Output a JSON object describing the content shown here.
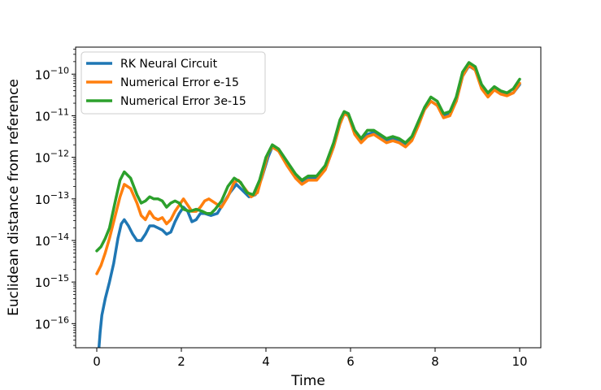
{
  "chart_data": {
    "type": "line",
    "title": "",
    "xlabel": "Time",
    "ylabel": "Euclidean distance from reference",
    "xlim": [
      -0.5,
      10.5
    ],
    "ylim_log10": [
      -16.58,
      -9.35
    ],
    "yscale": "log",
    "grid": false,
    "legend_position": "top-left",
    "x_ticks": [
      {
        "value": 0,
        "label": "0"
      },
      {
        "value": 2,
        "label": "2"
      },
      {
        "value": 4,
        "label": "4"
      },
      {
        "value": 6,
        "label": "6"
      },
      {
        "value": 8,
        "label": "8"
      },
      {
        "value": 10,
        "label": "10"
      }
    ],
    "y_ticks": [
      {
        "exp": -16,
        "base": "10",
        "sup": "−16"
      },
      {
        "exp": -15,
        "base": "10",
        "sup": "−15"
      },
      {
        "exp": -14,
        "base": "10",
        "sup": "−14"
      },
      {
        "exp": -13,
        "base": "10",
        "sup": "−13"
      },
      {
        "exp": -12,
        "base": "10",
        "sup": "−12"
      },
      {
        "exp": -11,
        "base": "10",
        "sup": "−11"
      },
      {
        "exp": -10,
        "base": "10",
        "sup": "−10"
      }
    ],
    "series": [
      {
        "name": "RK Neural Circuit",
        "color": "#1f77b4",
        "points_log10": [
          [
            0.05,
            -16.6
          ],
          [
            0.08,
            -16.2
          ],
          [
            0.12,
            -15.8
          ],
          [
            0.2,
            -15.4
          ],
          [
            0.3,
            -15.0
          ],
          [
            0.4,
            -14.55
          ],
          [
            0.5,
            -13.95
          ],
          [
            0.58,
            -13.6
          ],
          [
            0.65,
            -13.5
          ],
          [
            0.75,
            -13.65
          ],
          [
            0.85,
            -13.85
          ],
          [
            0.95,
            -14.0
          ],
          [
            1.05,
            -14.0
          ],
          [
            1.15,
            -13.85
          ],
          [
            1.25,
            -13.65
          ],
          [
            1.35,
            -13.65
          ],
          [
            1.45,
            -13.7
          ],
          [
            1.55,
            -13.75
          ],
          [
            1.65,
            -13.85
          ],
          [
            1.75,
            -13.8
          ],
          [
            1.85,
            -13.55
          ],
          [
            1.95,
            -13.35
          ],
          [
            2.05,
            -13.2
          ],
          [
            2.15,
            -13.3
          ],
          [
            2.25,
            -13.55
          ],
          [
            2.35,
            -13.5
          ],
          [
            2.45,
            -13.35
          ],
          [
            2.55,
            -13.35
          ],
          [
            2.7,
            -13.4
          ],
          [
            2.85,
            -13.35
          ],
          [
            3.0,
            -13.1
          ],
          [
            3.15,
            -12.85
          ],
          [
            3.3,
            -12.65
          ],
          [
            3.45,
            -12.8
          ],
          [
            3.6,
            -12.95
          ],
          [
            3.75,
            -12.9
          ],
          [
            3.9,
            -12.5
          ],
          [
            4.05,
            -12.0
          ],
          [
            4.15,
            -11.75
          ],
          [
            4.3,
            -11.85
          ],
          [
            4.5,
            -12.15
          ],
          [
            4.7,
            -12.45
          ],
          [
            4.85,
            -12.6
          ],
          [
            5.0,
            -12.5
          ],
          [
            5.2,
            -12.5
          ],
          [
            5.4,
            -12.3
          ],
          [
            5.6,
            -11.75
          ],
          [
            5.75,
            -11.2
          ],
          [
            5.85,
            -10.95
          ],
          [
            5.95,
            -11.0
          ],
          [
            6.1,
            -11.4
          ],
          [
            6.25,
            -11.6
          ],
          [
            6.4,
            -11.45
          ],
          [
            6.55,
            -11.4
          ],
          [
            6.7,
            -11.5
          ],
          [
            6.85,
            -11.6
          ],
          [
            7.0,
            -11.55
          ],
          [
            7.15,
            -11.6
          ],
          [
            7.3,
            -11.7
          ],
          [
            7.45,
            -11.55
          ],
          [
            7.6,
            -11.2
          ],
          [
            7.75,
            -10.85
          ],
          [
            7.9,
            -10.65
          ],
          [
            8.05,
            -10.75
          ],
          [
            8.2,
            -11.0
          ],
          [
            8.35,
            -10.95
          ],
          [
            8.5,
            -10.65
          ],
          [
            8.65,
            -10.05
          ],
          [
            8.8,
            -9.8
          ],
          [
            8.95,
            -9.9
          ],
          [
            9.1,
            -10.3
          ],
          [
            9.25,
            -10.5
          ],
          [
            9.4,
            -10.35
          ],
          [
            9.55,
            -10.45
          ],
          [
            9.7,
            -10.5
          ],
          [
            9.85,
            -10.45
          ],
          [
            10.0,
            -10.25
          ]
        ]
      },
      {
        "name": "Numerical Error e-15",
        "color": "#ff7f0e",
        "points_log10": [
          [
            0.0,
            -14.8
          ],
          [
            0.1,
            -14.6
          ],
          [
            0.2,
            -14.3
          ],
          [
            0.3,
            -13.95
          ],
          [
            0.45,
            -13.35
          ],
          [
            0.55,
            -12.95
          ],
          [
            0.65,
            -12.65
          ],
          [
            0.8,
            -12.75
          ],
          [
            0.95,
            -13.1
          ],
          [
            1.05,
            -13.4
          ],
          [
            1.15,
            -13.5
          ],
          [
            1.25,
            -13.3
          ],
          [
            1.35,
            -13.45
          ],
          [
            1.45,
            -13.5
          ],
          [
            1.55,
            -13.45
          ],
          [
            1.65,
            -13.6
          ],
          [
            1.75,
            -13.5
          ],
          [
            1.85,
            -13.3
          ],
          [
            1.95,
            -13.15
          ],
          [
            2.05,
            -13.0
          ],
          [
            2.15,
            -13.15
          ],
          [
            2.25,
            -13.3
          ],
          [
            2.35,
            -13.3
          ],
          [
            2.45,
            -13.2
          ],
          [
            2.55,
            -13.05
          ],
          [
            2.65,
            -13.0
          ],
          [
            2.8,
            -13.1
          ],
          [
            2.95,
            -13.2
          ],
          [
            3.1,
            -12.95
          ],
          [
            3.25,
            -12.6
          ],
          [
            3.35,
            -12.55
          ],
          [
            3.5,
            -12.75
          ],
          [
            3.65,
            -12.95
          ],
          [
            3.8,
            -12.85
          ],
          [
            3.95,
            -12.3
          ],
          [
            4.05,
            -11.9
          ],
          [
            4.15,
            -11.75
          ],
          [
            4.3,
            -11.85
          ],
          [
            4.5,
            -12.2
          ],
          [
            4.7,
            -12.5
          ],
          [
            4.85,
            -12.65
          ],
          [
            5.0,
            -12.55
          ],
          [
            5.2,
            -12.55
          ],
          [
            5.4,
            -12.3
          ],
          [
            5.6,
            -11.75
          ],
          [
            5.75,
            -11.2
          ],
          [
            5.85,
            -10.95
          ],
          [
            5.95,
            -11.0
          ],
          [
            6.1,
            -11.45
          ],
          [
            6.25,
            -11.65
          ],
          [
            6.4,
            -11.5
          ],
          [
            6.55,
            -11.45
          ],
          [
            6.7,
            -11.55
          ],
          [
            6.85,
            -11.65
          ],
          [
            7.0,
            -11.6
          ],
          [
            7.15,
            -11.65
          ],
          [
            7.3,
            -11.75
          ],
          [
            7.45,
            -11.6
          ],
          [
            7.6,
            -11.25
          ],
          [
            7.75,
            -10.85
          ],
          [
            7.9,
            -10.65
          ],
          [
            8.05,
            -10.75
          ],
          [
            8.2,
            -11.05
          ],
          [
            8.35,
            -11.0
          ],
          [
            8.5,
            -10.65
          ],
          [
            8.65,
            -10.05
          ],
          [
            8.8,
            -9.78
          ],
          [
            8.95,
            -9.9
          ],
          [
            9.1,
            -10.35
          ],
          [
            9.25,
            -10.55
          ],
          [
            9.4,
            -10.38
          ],
          [
            9.55,
            -10.48
          ],
          [
            9.7,
            -10.52
          ],
          [
            9.85,
            -10.45
          ],
          [
            10.0,
            -10.22
          ]
        ]
      },
      {
        "name": "Numerical Error 3e-15",
        "color": "#2ca02c",
        "points_log10": [
          [
            0.0,
            -14.25
          ],
          [
            0.1,
            -14.15
          ],
          [
            0.2,
            -13.95
          ],
          [
            0.3,
            -13.7
          ],
          [
            0.45,
            -13.0
          ],
          [
            0.55,
            -12.55
          ],
          [
            0.65,
            -12.35
          ],
          [
            0.8,
            -12.5
          ],
          [
            0.95,
            -12.9
          ],
          [
            1.05,
            -13.1
          ],
          [
            1.15,
            -13.05
          ],
          [
            1.25,
            -12.95
          ],
          [
            1.35,
            -13.0
          ],
          [
            1.45,
            -13.0
          ],
          [
            1.55,
            -13.05
          ],
          [
            1.65,
            -13.2
          ],
          [
            1.75,
            -13.1
          ],
          [
            1.85,
            -13.05
          ],
          [
            1.95,
            -13.1
          ],
          [
            2.05,
            -13.25
          ],
          [
            2.2,
            -13.3
          ],
          [
            2.35,
            -13.25
          ],
          [
            2.5,
            -13.3
          ],
          [
            2.6,
            -13.35
          ],
          [
            2.7,
            -13.35
          ],
          [
            2.8,
            -13.25
          ],
          [
            2.95,
            -13.05
          ],
          [
            3.1,
            -12.7
          ],
          [
            3.25,
            -12.5
          ],
          [
            3.4,
            -12.6
          ],
          [
            3.55,
            -12.85
          ],
          [
            3.7,
            -12.9
          ],
          [
            3.85,
            -12.55
          ],
          [
            4.0,
            -12.0
          ],
          [
            4.15,
            -11.7
          ],
          [
            4.3,
            -11.8
          ],
          [
            4.5,
            -12.1
          ],
          [
            4.7,
            -12.4
          ],
          [
            4.85,
            -12.55
          ],
          [
            5.0,
            -12.45
          ],
          [
            5.2,
            -12.45
          ],
          [
            5.4,
            -12.2
          ],
          [
            5.6,
            -11.65
          ],
          [
            5.75,
            -11.1
          ],
          [
            5.85,
            -10.9
          ],
          [
            5.95,
            -10.95
          ],
          [
            6.1,
            -11.35
          ],
          [
            6.25,
            -11.55
          ],
          [
            6.4,
            -11.35
          ],
          [
            6.55,
            -11.35
          ],
          [
            6.7,
            -11.45
          ],
          [
            6.85,
            -11.55
          ],
          [
            7.0,
            -11.5
          ],
          [
            7.15,
            -11.55
          ],
          [
            7.3,
            -11.65
          ],
          [
            7.45,
            -11.5
          ],
          [
            7.6,
            -11.15
          ],
          [
            7.75,
            -10.8
          ],
          [
            7.9,
            -10.55
          ],
          [
            8.05,
            -10.65
          ],
          [
            8.2,
            -10.95
          ],
          [
            8.35,
            -10.9
          ],
          [
            8.5,
            -10.55
          ],
          [
            8.65,
            -9.95
          ],
          [
            8.8,
            -9.72
          ],
          [
            8.95,
            -9.82
          ],
          [
            9.1,
            -10.25
          ],
          [
            9.25,
            -10.45
          ],
          [
            9.4,
            -10.3
          ],
          [
            9.55,
            -10.4
          ],
          [
            9.7,
            -10.45
          ],
          [
            9.85,
            -10.35
          ],
          [
            10.0,
            -10.12
          ]
        ]
      }
    ]
  }
}
